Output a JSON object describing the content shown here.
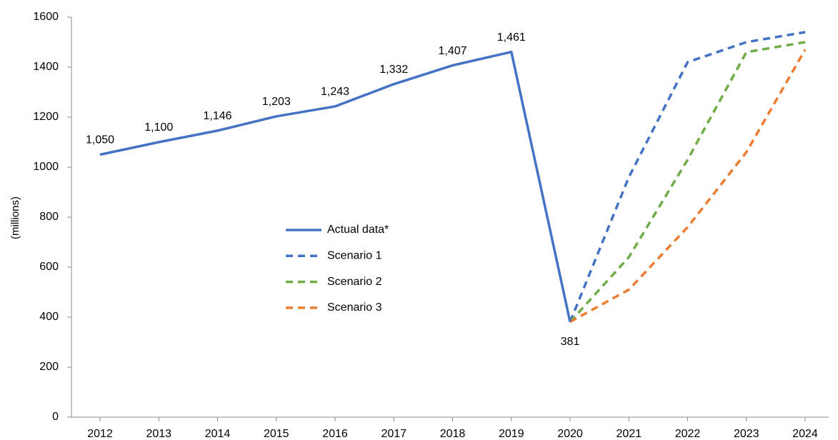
{
  "chart_data": {
    "type": "line",
    "y_label": "(millions)",
    "categories": [
      "2012",
      "2013",
      "2014",
      "2015",
      "2016",
      "2017",
      "2018",
      "2019",
      "2020",
      "2021",
      "2022",
      "2023",
      "2024"
    ],
    "series": [
      {
        "name": "Actual data*",
        "color": "#4472c4",
        "style": "solid",
        "values": [
          1050,
          1100,
          1146,
          1203,
          1243,
          1332,
          1407,
          1461,
          381,
          null,
          null,
          null,
          null
        ],
        "value_labels": [
          "1,050",
          "1,100",
          "1,146",
          "1,203",
          "1,243",
          "1,332",
          "1,407",
          "1,461",
          "381",
          null,
          null,
          null,
          null
        ]
      },
      {
        "name": "Scenario 1",
        "color": "#4472c4",
        "style": "dashed",
        "values": [
          null,
          null,
          null,
          null,
          null,
          null,
          null,
          null,
          381,
          960,
          1420,
          1500,
          1540
        ]
      },
      {
        "name": "Scenario 2",
        "color": "#70ad47",
        "style": "dashed",
        "values": [
          null,
          null,
          null,
          null,
          null,
          null,
          null,
          null,
          381,
          640,
          1030,
          1460,
          1500
        ]
      },
      {
        "name": "Scenario 3",
        "color": "#ed7d31",
        "style": "dashed",
        "values": [
          null,
          null,
          null,
          null,
          null,
          null,
          null,
          null,
          381,
          510,
          760,
          1060,
          1470
        ]
      }
    ],
    "ylim": [
      0,
      1600
    ],
    "yticks": [
      0,
      200,
      400,
      600,
      800,
      1000,
      1200,
      1400,
      1600
    ],
    "grid": false
  }
}
